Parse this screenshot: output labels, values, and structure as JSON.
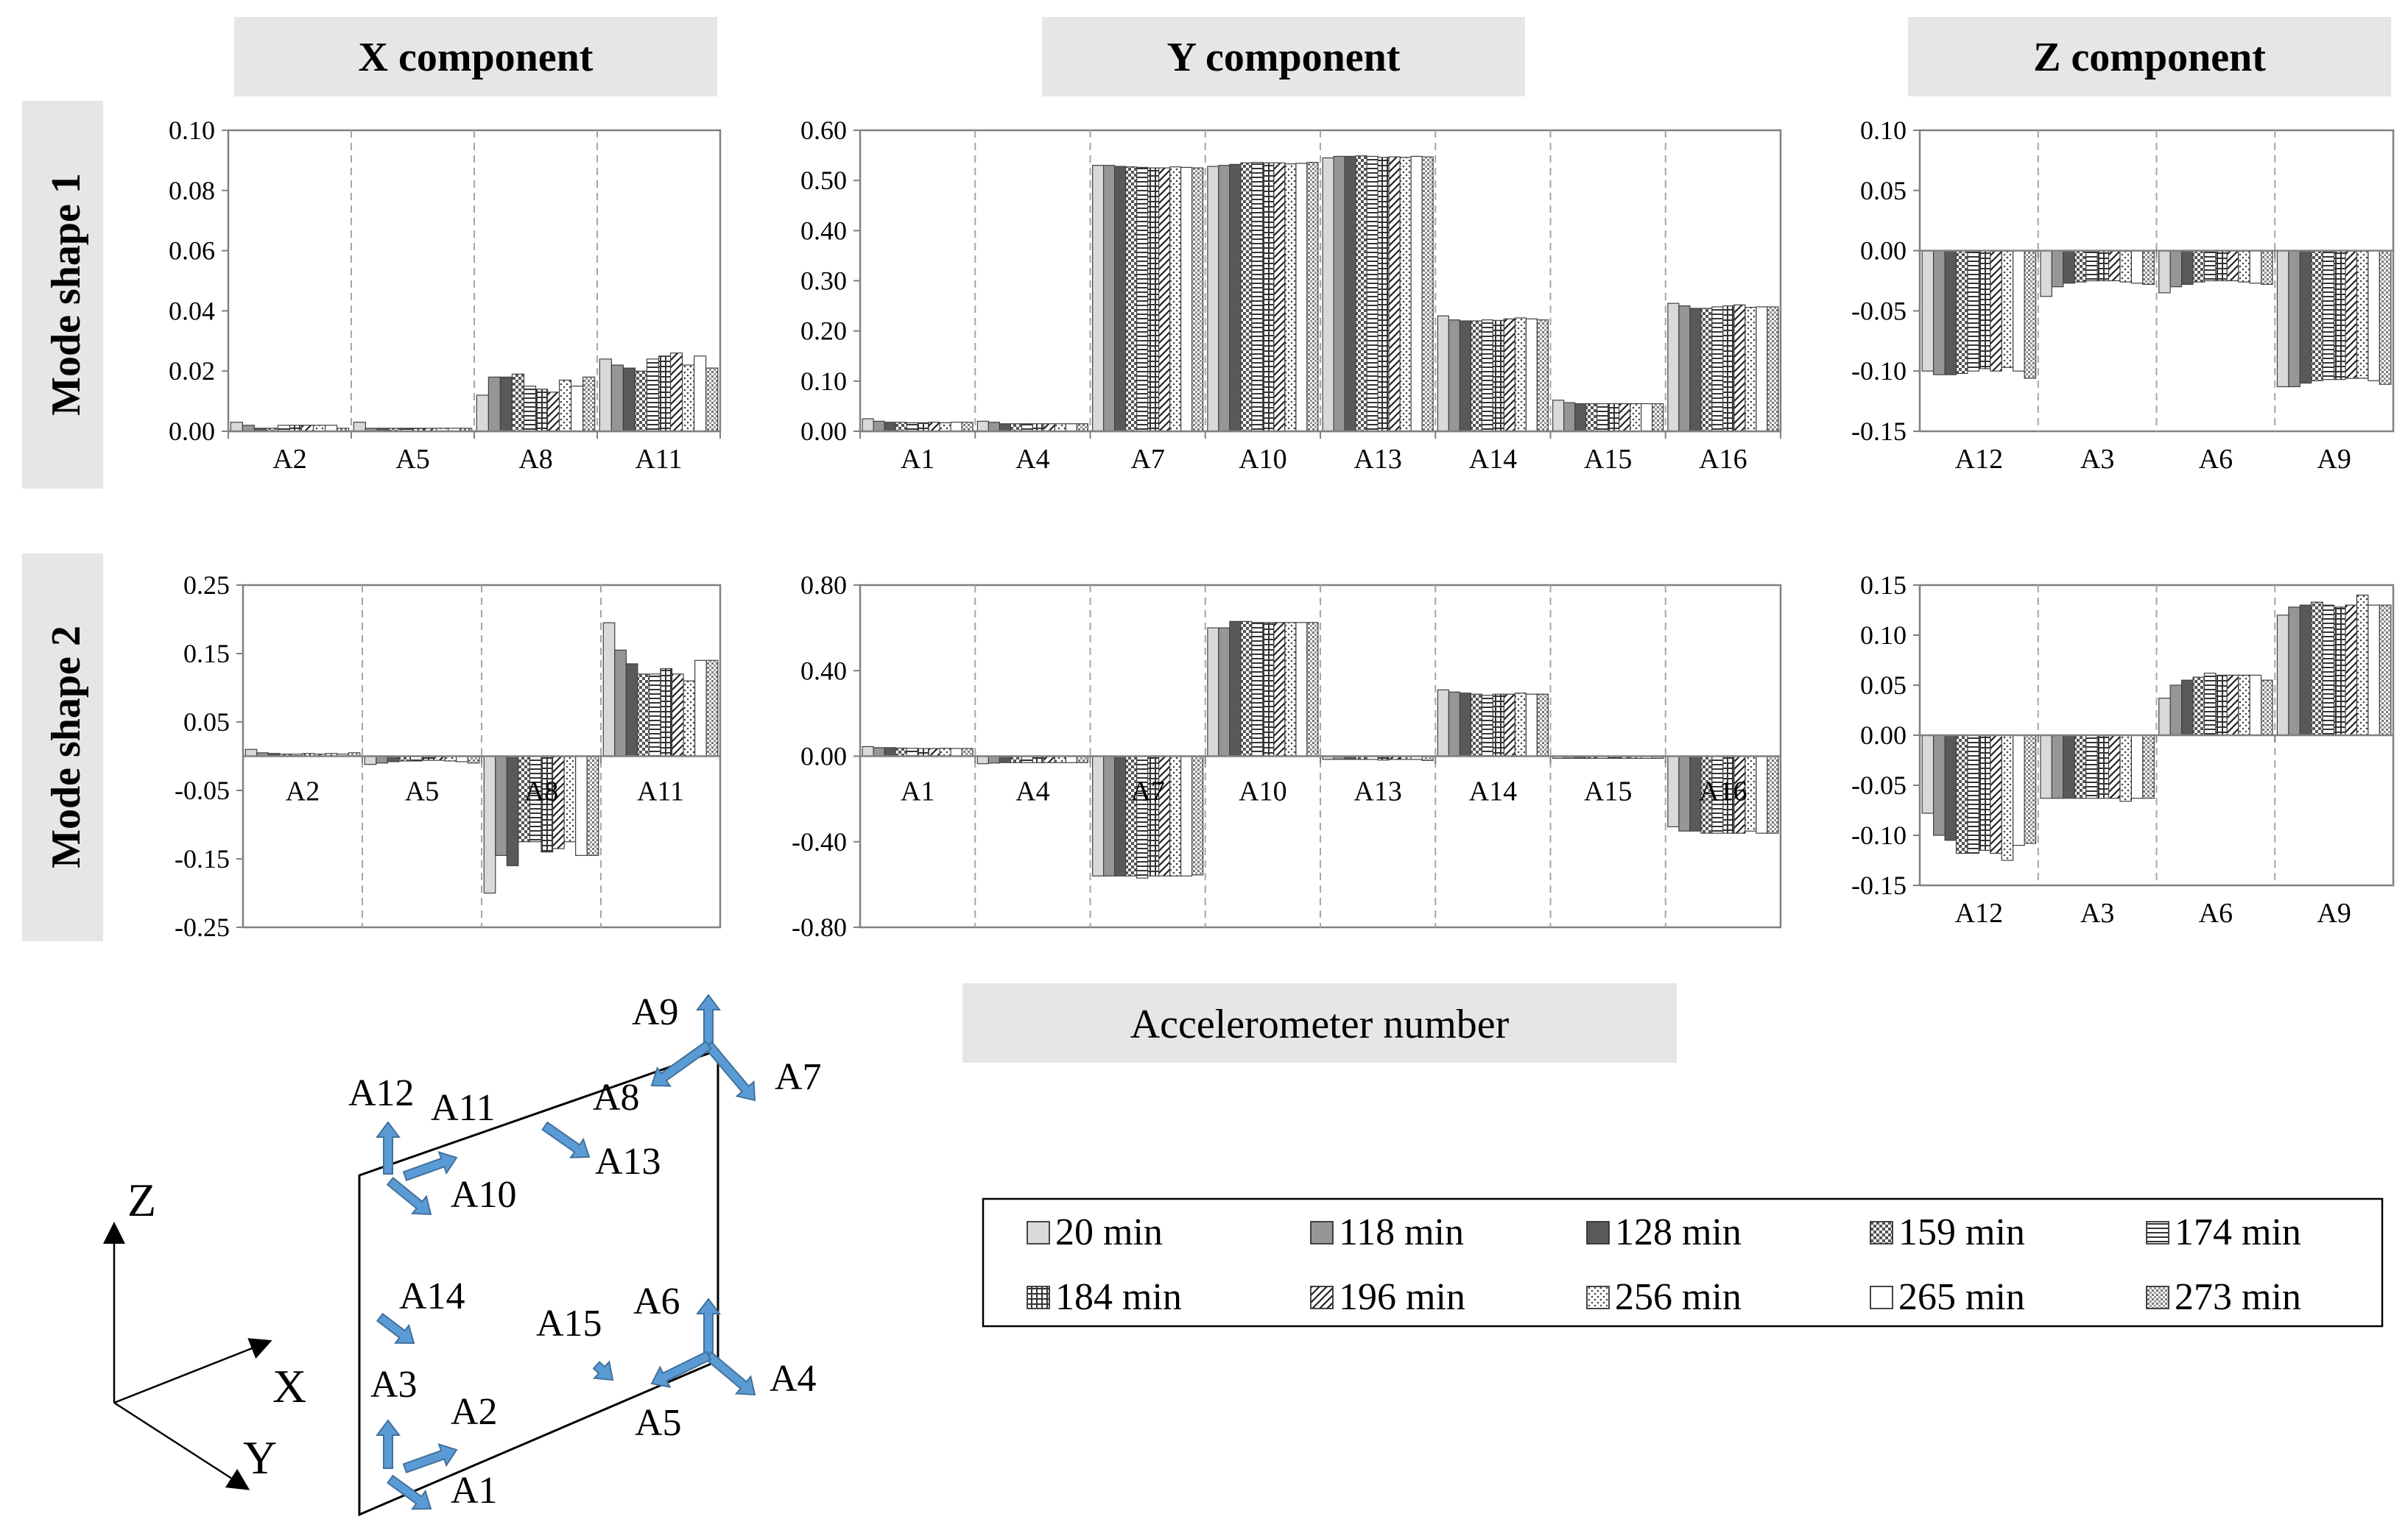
{
  "headers": {
    "x_component": "X component",
    "y_component": "Y component",
    "z_component": "Z component",
    "mode_shape_1": "Mode shape 1",
    "mode_shape_2": "Mode shape 2",
    "xlabel": "Accelerometer number"
  },
  "legend": {
    "entries": [
      {
        "label": "20 min",
        "pattern": "light-gray"
      },
      {
        "label": "118 min",
        "pattern": "medium-gray"
      },
      {
        "label": "128 min",
        "pattern": "dark-gray"
      },
      {
        "label": "159 min",
        "pattern": "checker"
      },
      {
        "label": "174 min",
        "pattern": "horizontal-lines"
      },
      {
        "label": "184 min",
        "pattern": "grid"
      },
      {
        "label": "196 min",
        "pattern": "diagonal"
      },
      {
        "label": "256 min",
        "pattern": "dots"
      },
      {
        "label": "265 min",
        "pattern": "white"
      },
      {
        "label": "273 min",
        "pattern": "dense-dots"
      }
    ]
  },
  "chart_data": [
    {
      "type": "bar",
      "title": "X component",
      "row": "Mode shape 1",
      "ylim": [
        0,
        0.1
      ],
      "yticks": [
        0,
        0.02,
        0.04,
        0.06,
        0.08,
        0.1
      ],
      "ytick_labels": [
        "0.00",
        "0.02",
        "0.04",
        "0.06",
        "0.08",
        "0.10"
      ],
      "tick_pos": "bottom",
      "categories": [
        "A2",
        "A5",
        "A8",
        "A11"
      ],
      "values": [
        [
          0.003,
          0.002,
          0.001,
          0.001,
          0.002,
          0.002,
          0.002,
          0.002,
          0.002,
          0.001
        ],
        [
          0.003,
          0.001,
          0.001,
          0.001,
          0.001,
          0.001,
          0.001,
          0.001,
          0.001,
          0.001
        ],
        [
          0.012,
          0.018,
          0.018,
          0.019,
          0.015,
          0.014,
          0.013,
          0.017,
          0.015,
          0.018
        ],
        [
          0.024,
          0.022,
          0.021,
          0.02,
          0.024,
          0.025,
          0.026,
          0.022,
          0.025,
          0.021
        ]
      ]
    },
    {
      "type": "bar",
      "title": "Y component",
      "row": "Mode shape 1",
      "ylim": [
        0,
        0.6
      ],
      "yticks": [
        0,
        0.1,
        0.2,
        0.3,
        0.4,
        0.5,
        0.6
      ],
      "ytick_labels": [
        "0.00",
        "0.10",
        "0.20",
        "0.30",
        "0.40",
        "0.50",
        "0.60"
      ],
      "tick_pos": "bottom",
      "categories": [
        "A1",
        "A4",
        "A7",
        "A10",
        "A13",
        "A14",
        "A15",
        "A16"
      ],
      "values": [
        [
          0.025,
          0.02,
          0.018,
          0.018,
          0.017,
          0.017,
          0.018,
          0.017,
          0.018,
          0.018
        ],
        [
          0.02,
          0.018,
          0.015,
          0.015,
          0.015,
          0.015,
          0.015,
          0.015,
          0.015,
          0.015
        ],
        [
          0.53,
          0.53,
          0.528,
          0.527,
          0.526,
          0.525,
          0.525,
          0.527,
          0.526,
          0.525
        ],
        [
          0.528,
          0.53,
          0.532,
          0.535,
          0.536,
          0.535,
          0.535,
          0.533,
          0.534,
          0.536
        ],
        [
          0.545,
          0.548,
          0.548,
          0.549,
          0.548,
          0.546,
          0.547,
          0.546,
          0.548,
          0.547
        ],
        [
          0.23,
          0.222,
          0.22,
          0.22,
          0.222,
          0.221,
          0.224,
          0.226,
          0.224,
          0.222
        ],
        [
          0.062,
          0.057,
          0.055,
          0.055,
          0.055,
          0.055,
          0.055,
          0.055,
          0.055,
          0.055
        ],
        [
          0.255,
          0.25,
          0.245,
          0.245,
          0.248,
          0.25,
          0.252,
          0.247,
          0.248,
          0.248
        ]
      ]
    },
    {
      "type": "bar",
      "title": "Z component",
      "row": "Mode shape 1",
      "ylim": [
        -0.15,
        0.1
      ],
      "yticks": [
        -0.15,
        -0.1,
        -0.05,
        0,
        0.05,
        0.1
      ],
      "ytick_labels": [
        "-0.15",
        "-0.10",
        "-0.05",
        "0.00",
        "0.05",
        "0.10"
      ],
      "tick_pos": "bottom",
      "categories": [
        "A12",
        "A3",
        "A6",
        "A9"
      ],
      "values": [
        [
          -0.1,
          -0.103,
          -0.103,
          -0.102,
          -0.1,
          -0.098,
          -0.1,
          -0.097,
          -0.1,
          -0.106
        ],
        [
          -0.038,
          -0.03,
          -0.027,
          -0.026,
          -0.025,
          -0.025,
          -0.025,
          -0.026,
          -0.027,
          -0.028
        ],
        [
          -0.035,
          -0.03,
          -0.028,
          -0.026,
          -0.025,
          -0.025,
          -0.025,
          -0.026,
          -0.027,
          -0.028
        ],
        [
          -0.113,
          -0.113,
          -0.11,
          -0.108,
          -0.107,
          -0.107,
          -0.106,
          -0.106,
          -0.108,
          -0.111
        ]
      ]
    },
    {
      "type": "bar",
      "title": "X component",
      "row": "Mode shape 2",
      "ylim": [
        -0.25,
        0.25
      ],
      "yticks": [
        -0.25,
        -0.15,
        -0.05,
        0.05,
        0.15,
        0.25
      ],
      "ytick_labels": [
        "-0.25",
        "-0.15",
        "-0.05",
        "0.05",
        "0.15",
        "0.25"
      ],
      "tick_pos": "zero",
      "categories": [
        "A2",
        "A5",
        "A8",
        "A11"
      ],
      "values": [
        [
          0.01,
          0.005,
          0.004,
          0.003,
          0.003,
          0.004,
          0.003,
          0.004,
          0.003,
          0.005
        ],
        [
          -0.012,
          -0.01,
          -0.008,
          -0.007,
          -0.007,
          -0.006,
          -0.006,
          -0.007,
          -0.008,
          -0.01
        ],
        [
          -0.2,
          -0.145,
          -0.16,
          -0.125,
          -0.125,
          -0.14,
          -0.135,
          -0.125,
          -0.145,
          -0.145
        ],
        [
          0.195,
          0.155,
          0.135,
          0.12,
          0.12,
          0.128,
          0.12,
          0.11,
          0.14,
          0.14
        ]
      ]
    },
    {
      "type": "bar",
      "title": "Y component",
      "row": "Mode shape 2",
      "ylim": [
        -0.8,
        0.8
      ],
      "yticks": [
        -0.8,
        -0.4,
        0,
        0.4,
        0.8
      ],
      "ytick_labels": [
        "-0.80",
        "-0.40",
        "0.00",
        "0.40",
        "0.80"
      ],
      "tick_pos": "zero",
      "categories": [
        "A1",
        "A4",
        "A7",
        "A10",
        "A13",
        "A14",
        "A15",
        "A16"
      ],
      "values": [
        [
          0.045,
          0.04,
          0.04,
          0.038,
          0.037,
          0.036,
          0.036,
          0.037,
          0.036,
          0.036
        ],
        [
          -0.035,
          -0.032,
          -0.03,
          -0.03,
          -0.03,
          -0.03,
          -0.03,
          -0.03,
          -0.03,
          -0.03
        ],
        [
          -0.56,
          -0.56,
          -0.56,
          -0.56,
          -0.57,
          -0.56,
          -0.56,
          -0.56,
          -0.56,
          -0.555
        ],
        [
          0.6,
          0.6,
          0.63,
          0.63,
          0.625,
          0.625,
          0.625,
          0.625,
          0.625,
          0.625
        ],
        [
          -0.015,
          -0.015,
          -0.015,
          -0.015,
          -0.015,
          -0.018,
          -0.015,
          -0.015,
          -0.015,
          -0.02
        ],
        [
          0.31,
          0.3,
          0.295,
          0.29,
          0.285,
          0.29,
          0.29,
          0.295,
          0.29,
          0.29
        ],
        [
          -0.01,
          -0.01,
          -0.01,
          -0.01,
          -0.01,
          -0.01,
          -0.01,
          -0.01,
          -0.01,
          -0.01
        ],
        [
          -0.33,
          -0.35,
          -0.35,
          -0.36,
          -0.36,
          -0.36,
          -0.36,
          -0.35,
          -0.36,
          -0.36
        ]
      ]
    },
    {
      "type": "bar",
      "title": "Z component",
      "row": "Mode shape 2",
      "ylim": [
        -0.15,
        0.15
      ],
      "yticks": [
        -0.15,
        -0.1,
        -0.05,
        0,
        0.05,
        0.1,
        0.15
      ],
      "ytick_labels": [
        "-0.15",
        "-0.10",
        "-0.05",
        "0.00",
        "0.05",
        "0.10",
        "0.15"
      ],
      "tick_pos": "bottom",
      "categories": [
        "A12",
        "A3",
        "A6",
        "A9"
      ],
      "values": [
        [
          -0.078,
          -0.1,
          -0.105,
          -0.118,
          -0.118,
          -0.115,
          -0.118,
          -0.125,
          -0.11,
          -0.108
        ],
        [
          -0.063,
          -0.063,
          -0.063,
          -0.063,
          -0.063,
          -0.063,
          -0.063,
          -0.066,
          -0.063,
          -0.063
        ],
        [
          0.037,
          0.05,
          0.055,
          0.058,
          0.062,
          0.06,
          0.06,
          0.06,
          0.06,
          0.055
        ],
        [
          0.12,
          0.128,
          0.13,
          0.133,
          0.13,
          0.128,
          0.13,
          0.14,
          0.13,
          0.13
        ]
      ]
    }
  ],
  "diagram": {
    "axes": {
      "z": "Z",
      "x": "X",
      "y": "Y"
    },
    "labels": [
      "A1",
      "A2",
      "A3",
      "A4",
      "A5",
      "A6",
      "A7",
      "A8",
      "A9",
      "A10",
      "A11",
      "A12",
      "A13",
      "A14",
      "A15"
    ]
  }
}
